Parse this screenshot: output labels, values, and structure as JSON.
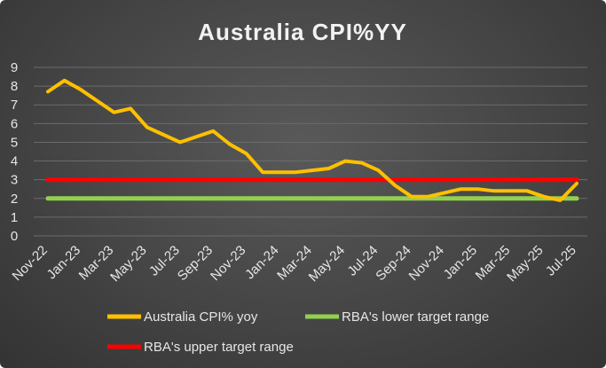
{
  "chart_data": {
    "type": "line",
    "title": "Australia CPI%YY",
    "xlabel": "",
    "ylabel": "",
    "ylim": [
      0,
      9
    ],
    "yticks": [
      "0",
      "1",
      "2",
      "3",
      "4",
      "5",
      "6",
      "7",
      "8",
      "9"
    ],
    "x_tick_labels": [
      "Nov-22",
      "Jan-23",
      "Mar-23",
      "May-23",
      "Jul-23",
      "Sep-23",
      "Nov-23",
      "Jan-24",
      "Mar-24",
      "May-24",
      "Jul-24",
      "Sep-24",
      "Nov-24",
      "Jan-25",
      "Mar-25",
      "May-25",
      "Jul-25"
    ],
    "x": [
      "Nov-22",
      "Dec-22",
      "Jan-23",
      "Feb-23",
      "Mar-23",
      "Apr-23",
      "May-23",
      "Jun-23",
      "Jul-23",
      "Aug-23",
      "Sep-23",
      "Oct-23",
      "Nov-23",
      "Dec-23",
      "Jan-24",
      "Feb-24",
      "Mar-24",
      "Apr-24",
      "May-24",
      "Jun-24",
      "Jul-24",
      "Aug-24",
      "Sep-24",
      "Oct-24",
      "Nov-24",
      "Dec-24",
      "Jan-25",
      "Feb-25",
      "Mar-25",
      "Apr-25",
      "May-25",
      "Jun-25",
      "Jul-25"
    ],
    "grid": true,
    "legend_position": "bottom",
    "series": [
      {
        "name": "Australia CPI% yoy",
        "color": "#ffc000",
        "values": [
          7.7,
          8.3,
          7.8,
          7.2,
          6.6,
          6.8,
          5.8,
          5.4,
          5.0,
          5.3,
          5.6,
          4.9,
          4.4,
          3.4,
          3.4,
          3.4,
          3.5,
          3.6,
          4.0,
          3.9,
          3.5,
          2.7,
          2.1,
          2.1,
          2.3,
          2.5,
          2.5,
          2.4,
          2.4,
          2.4,
          2.1,
          1.9,
          2.8
        ]
      },
      {
        "name": "RBA's lower target range",
        "color": "#92d050",
        "values": [
          2,
          2,
          2,
          2,
          2,
          2,
          2,
          2,
          2,
          2,
          2,
          2,
          2,
          2,
          2,
          2,
          2,
          2,
          2,
          2,
          2,
          2,
          2,
          2,
          2,
          2,
          2,
          2,
          2,
          2,
          2,
          2,
          2
        ]
      },
      {
        "name": "RBA's upper target range",
        "color": "#ff0000",
        "values": [
          3,
          3,
          3,
          3,
          3,
          3,
          3,
          3,
          3,
          3,
          3,
          3,
          3,
          3,
          3,
          3,
          3,
          3,
          3,
          3,
          3,
          3,
          3,
          3,
          3,
          3,
          3,
          3,
          3,
          3,
          3,
          3,
          3
        ]
      }
    ]
  },
  "colors": {
    "background": "#454545",
    "gridline": "#6b6b6b",
    "text": "#e6e6e6"
  }
}
